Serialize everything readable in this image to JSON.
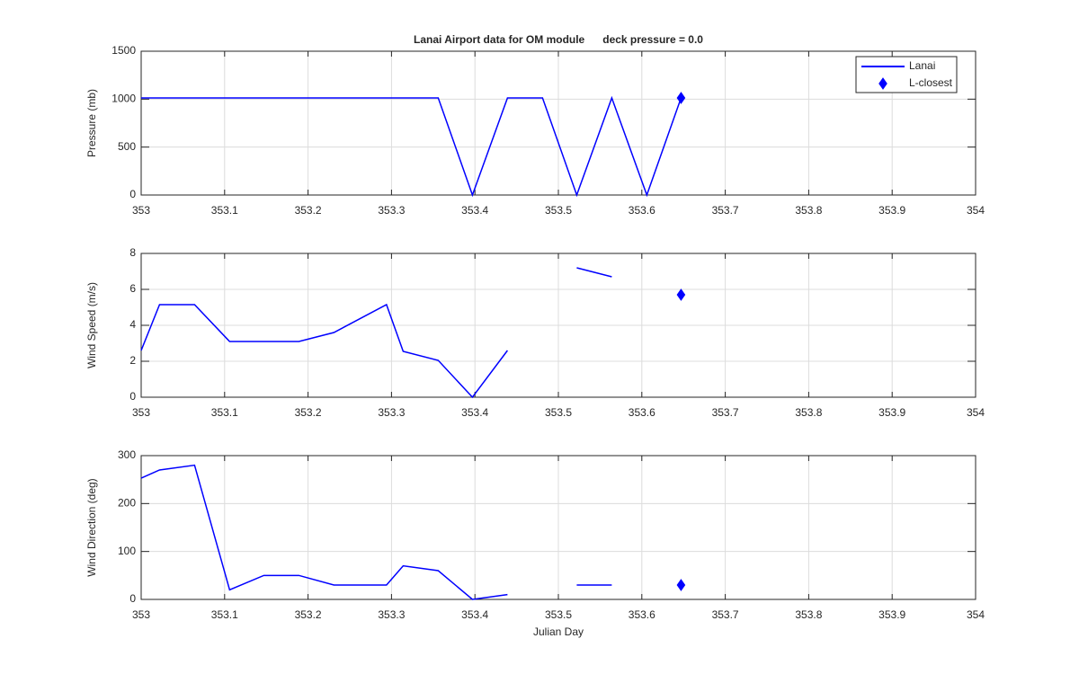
{
  "chart_data": [
    {
      "type": "line",
      "title": "Lanai Airport data for OM module      deck pressure = 0.0",
      "ylabel": "Pressure (mb)",
      "legend": "northeast",
      "grid": true,
      "xlim": [
        353,
        354
      ],
      "xticks": [
        353,
        353.1,
        353.2,
        353.3,
        353.4,
        353.5,
        353.6,
        353.7,
        353.8,
        353.9,
        354
      ],
      "ylim": [
        0,
        1500
      ],
      "yticks": [
        0,
        500,
        1000,
        1500
      ],
      "x": [
        353.0,
        353.022,
        353.064,
        353.106,
        353.147,
        353.189,
        353.231,
        353.294,
        353.314,
        353.356,
        353.397,
        353.439,
        353.481,
        353.522,
        353.564,
        353.606,
        353.647
      ],
      "series": [
        {
          "name": "Lanai",
          "color": "#0000ff",
          "values": [
            1013,
            1013,
            1013,
            1013,
            1013,
            1013,
            1013,
            1013,
            1013,
            1013,
            0,
            1013,
            1013,
            0,
            1013,
            0,
            1013
          ]
        },
        {
          "name": "L-closest",
          "color": "#0000ff",
          "marker": "diamond",
          "x": [
            353.647
          ],
          "values": [
            1013
          ]
        }
      ]
    },
    {
      "type": "line",
      "ylabel": "Wind Speed (m/s)",
      "grid": true,
      "xlim": [
        353,
        354
      ],
      "xticks": [
        353,
        353.1,
        353.2,
        353.3,
        353.4,
        353.5,
        353.6,
        353.7,
        353.8,
        353.9,
        354
      ],
      "ylim": [
        0,
        8
      ],
      "yticks": [
        0,
        2,
        4,
        6,
        8
      ],
      "x": [
        353.0,
        353.022,
        353.064,
        353.106,
        353.147,
        353.189,
        353.231,
        353.294,
        353.314,
        353.356,
        353.397,
        353.439,
        353.481,
        353.522,
        353.564,
        353.606,
        353.647
      ],
      "series": [
        {
          "color": "#0000ff",
          "values": [
            2.6,
            5.15,
            5.15,
            3.1,
            3.1,
            3.1,
            3.6,
            5.15,
            2.55,
            2.05,
            0,
            2.6,
            null,
            7.2,
            6.7,
            null,
            null
          ]
        },
        {
          "color": "#0000ff",
          "marker": "diamond",
          "x": [
            353.647
          ],
          "values": [
            5.7
          ]
        }
      ]
    },
    {
      "type": "line",
      "ylabel": "Wind Direction (deg)",
      "xlabel": "Julian Day",
      "grid": true,
      "xlim": [
        353,
        354
      ],
      "xticks": [
        353,
        353.1,
        353.2,
        353.3,
        353.4,
        353.5,
        353.6,
        353.7,
        353.8,
        353.9,
        354
      ],
      "ylim": [
        0,
        300
      ],
      "yticks": [
        0,
        100,
        200,
        300
      ],
      "x": [
        353.0,
        353.022,
        353.064,
        353.106,
        353.147,
        353.189,
        353.231,
        353.294,
        353.314,
        353.356,
        353.397,
        353.439,
        353.481,
        353.522,
        353.564,
        353.606,
        353.647
      ],
      "series": [
        {
          "color": "#0000ff",
          "values": [
            253,
            270,
            280,
            20,
            50,
            50,
            30,
            30,
            70,
            60,
            0,
            10,
            null,
            30,
            30,
            null,
            null
          ]
        },
        {
          "color": "#0000ff",
          "marker": "diamond",
          "x": [
            353.647
          ],
          "values": [
            30
          ]
        }
      ]
    }
  ]
}
